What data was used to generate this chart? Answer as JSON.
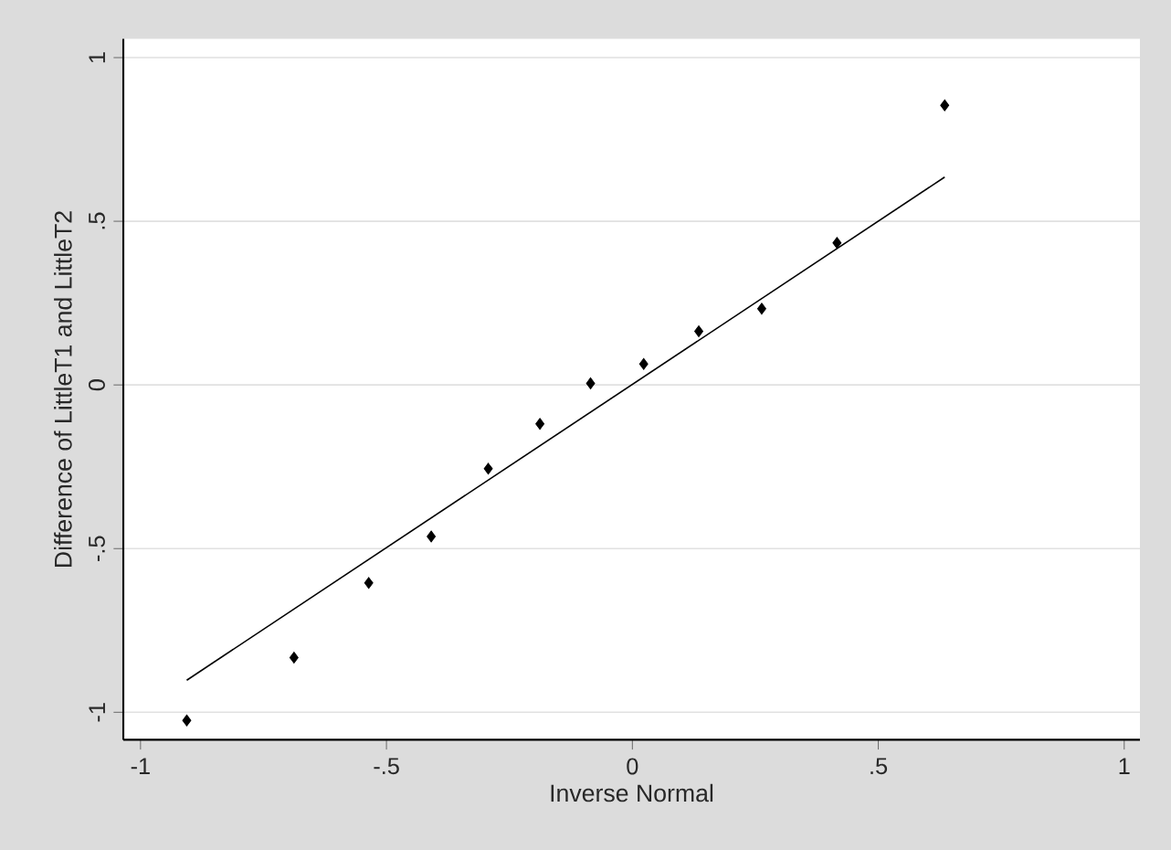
{
  "chart_data": {
    "type": "scatter",
    "xlabel": "Inverse Normal",
    "ylabel": "Difference of LittleT1 and LittleT2",
    "xlim": [
      -1.035,
      1.032
    ],
    "ylim": [
      -1.084,
      1.057
    ],
    "xticks": [
      -1,
      {
        "value": -0.5,
        "label": "-.5"
      },
      0,
      {
        "value": 0.5,
        "label": ".5"
      },
      1
    ],
    "yticks": [
      -1,
      {
        "value": -0.5,
        "label": "-.5"
      },
      0,
      {
        "value": 0.5,
        "label": ".5"
      },
      1
    ],
    "grid": "y",
    "marker": "diamond",
    "series": [
      {
        "color": "#000000",
        "x": [
          -0.906,
          -0.688,
          -0.536,
          -0.409,
          -0.293,
          -0.188,
          -0.085,
          0.023,
          0.135,
          0.263,
          0.416,
          0.635
        ],
        "values": [
          -1.025,
          -0.833,
          -0.605,
          -0.463,
          -0.256,
          -0.119,
          0.005,
          0.064,
          0.164,
          0.233,
          0.434,
          0.854
        ]
      },
      {
        "type": "line",
        "color": "#000000",
        "marker": "none",
        "x": [
          -0.906,
          0.635
        ],
        "values": [
          -0.902,
          0.635
        ]
      }
    ]
  }
}
